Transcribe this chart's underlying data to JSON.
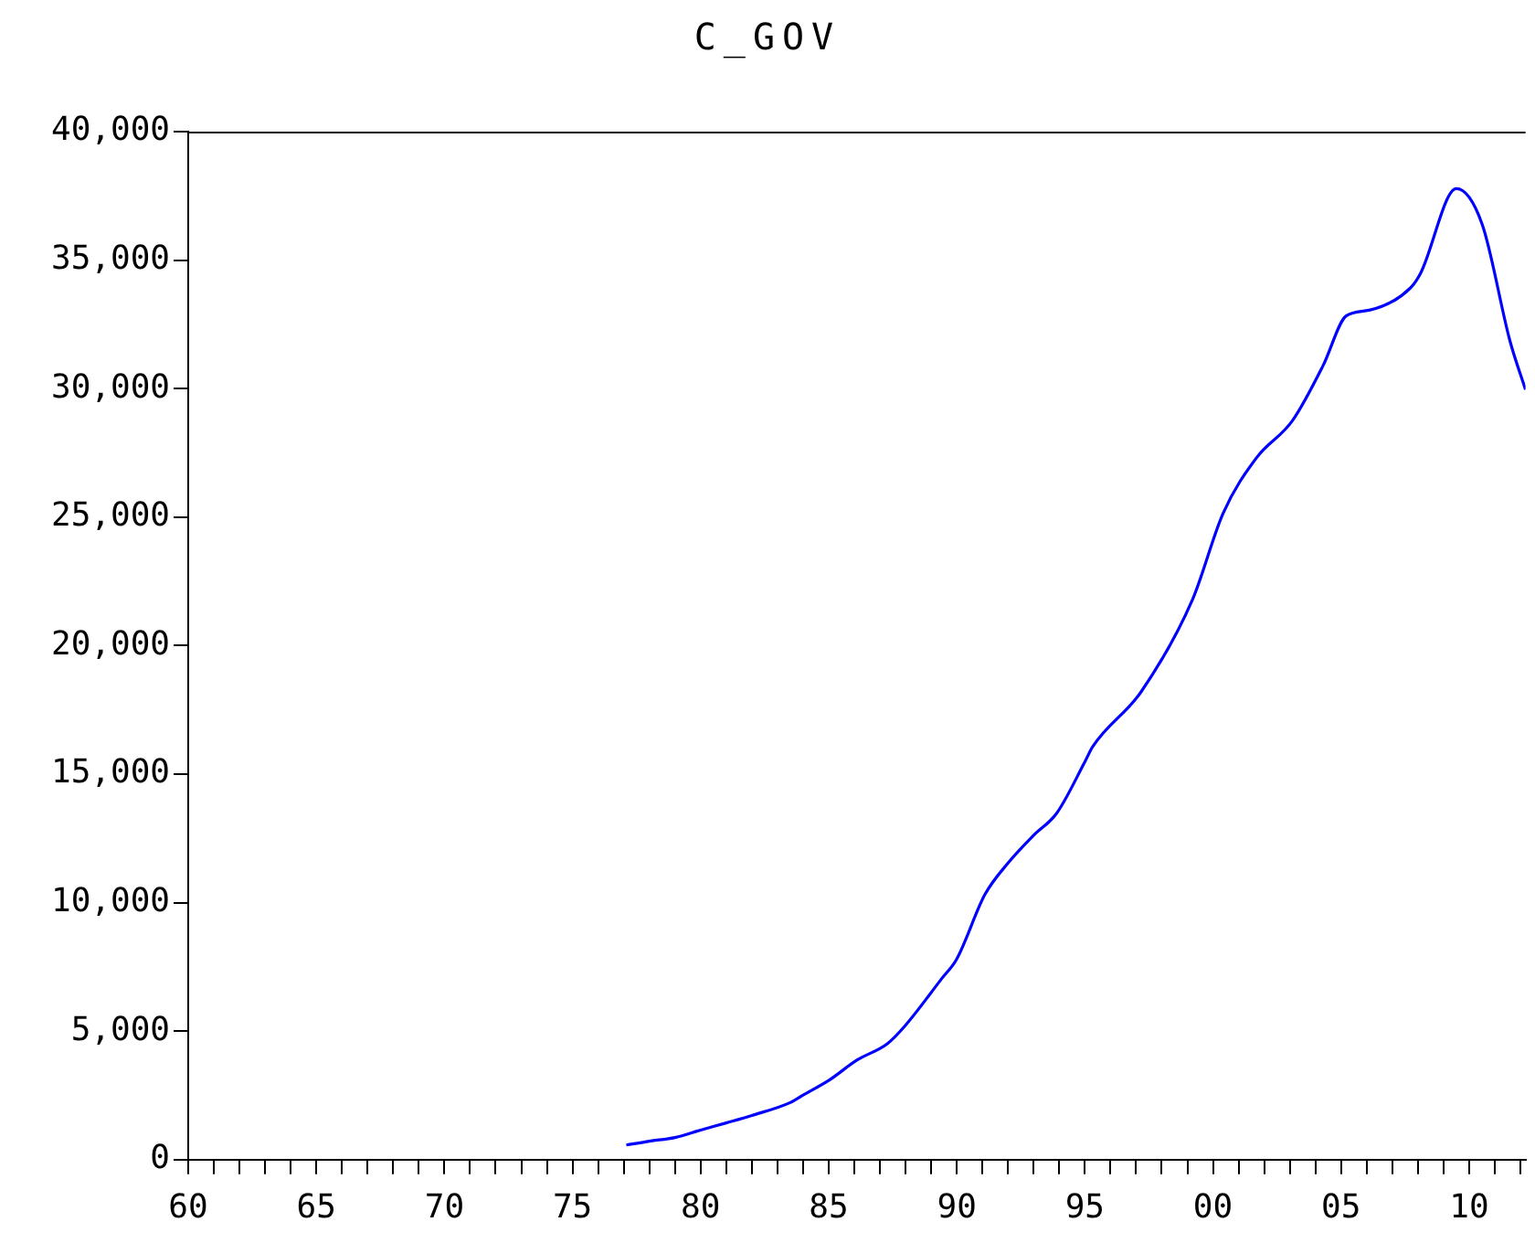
{
  "chart_data": {
    "type": "line",
    "title": "C_GOV",
    "grid": false,
    "legend": false,
    "marker": "none",
    "line_style": "solid",
    "xlim": [
      1960,
      2012.2
    ],
    "ylim": [
      0,
      40000
    ],
    "xticks": [
      {
        "value": 1960,
        "label": "60"
      },
      {
        "value": 1961,
        "label": null
      },
      {
        "value": 1962,
        "label": null
      },
      {
        "value": 1963,
        "label": null
      },
      {
        "value": 1964,
        "label": null
      },
      {
        "value": 1965,
        "label": "65"
      },
      {
        "value": 1966,
        "label": null
      },
      {
        "value": 1967,
        "label": null
      },
      {
        "value": 1968,
        "label": null
      },
      {
        "value": 1969,
        "label": null
      },
      {
        "value": 1970,
        "label": "70"
      },
      {
        "value": 1971,
        "label": null
      },
      {
        "value": 1972,
        "label": null
      },
      {
        "value": 1973,
        "label": null
      },
      {
        "value": 1974,
        "label": null
      },
      {
        "value": 1975,
        "label": "75"
      },
      {
        "value": 1976,
        "label": null
      },
      {
        "value": 1977,
        "label": null
      },
      {
        "value": 1978,
        "label": null
      },
      {
        "value": 1979,
        "label": null
      },
      {
        "value": 1980,
        "label": "80"
      },
      {
        "value": 1981,
        "label": null
      },
      {
        "value": 1982,
        "label": null
      },
      {
        "value": 1983,
        "label": null
      },
      {
        "value": 1984,
        "label": null
      },
      {
        "value": 1985,
        "label": "85"
      },
      {
        "value": 1986,
        "label": null
      },
      {
        "value": 1987,
        "label": null
      },
      {
        "value": 1988,
        "label": null
      },
      {
        "value": 1989,
        "label": null
      },
      {
        "value": 1990,
        "label": "90"
      },
      {
        "value": 1991,
        "label": null
      },
      {
        "value": 1992,
        "label": null
      },
      {
        "value": 1993,
        "label": null
      },
      {
        "value": 1994,
        "label": null
      },
      {
        "value": 1995,
        "label": "95"
      },
      {
        "value": 1996,
        "label": null
      },
      {
        "value": 1997,
        "label": null
      },
      {
        "value": 1998,
        "label": null
      },
      {
        "value": 1999,
        "label": null
      },
      {
        "value": 2000,
        "label": "00"
      },
      {
        "value": 2001,
        "label": null
      },
      {
        "value": 2002,
        "label": null
      },
      {
        "value": 2003,
        "label": null
      },
      {
        "value": 2004,
        "label": null
      },
      {
        "value": 2005,
        "label": "05"
      },
      {
        "value": 2006,
        "label": null
      },
      {
        "value": 2007,
        "label": null
      },
      {
        "value": 2008,
        "label": null
      },
      {
        "value": 2009,
        "label": null
      },
      {
        "value": 2010,
        "label": "10"
      },
      {
        "value": 2011,
        "label": null
      },
      {
        "value": 2012,
        "label": null
      }
    ],
    "yticks": [
      {
        "value": 0,
        "label": "0"
      },
      {
        "value": 5000,
        "label": "5,000"
      },
      {
        "value": 10000,
        "label": "10,000"
      },
      {
        "value": 15000,
        "label": "15,000"
      },
      {
        "value": 20000,
        "label": "20,000"
      },
      {
        "value": 25000,
        "label": "25,000"
      },
      {
        "value": 30000,
        "label": "30,000"
      },
      {
        "value": 35000,
        "label": "35,000"
      },
      {
        "value": 40000,
        "label": "40,000"
      }
    ],
    "series": [
      {
        "color": "#0000ff",
        "x": [
          1977.1,
          1978,
          1979,
          1980,
          1981,
          1982,
          1983.5,
          1984,
          1985,
          1986.1,
          1987.3,
          1988,
          1989.4,
          1990,
          1991.1,
          1992,
          1993,
          1993.9,
          1995,
          1995.3,
          1997.2,
          1999.2,
          2000.4,
          2001.7,
          2003.1,
          2004.3,
          2005.2,
          2006.1,
          2007.7,
          2008.1,
          2009.5,
          2010.5,
          2011.6,
          2012.2
        ],
        "values": [
          570,
          720,
          860,
          1150,
          1430,
          1720,
          2220,
          2510,
          3080,
          3870,
          4520,
          5230,
          7030,
          7810,
          10320,
          11540,
          12620,
          13480,
          15480,
          16060,
          18210,
          21790,
          25160,
          27310,
          28750,
          30900,
          32830,
          33050,
          33910,
          34480,
          37780,
          36420,
          31830,
          29960
        ]
      }
    ]
  }
}
